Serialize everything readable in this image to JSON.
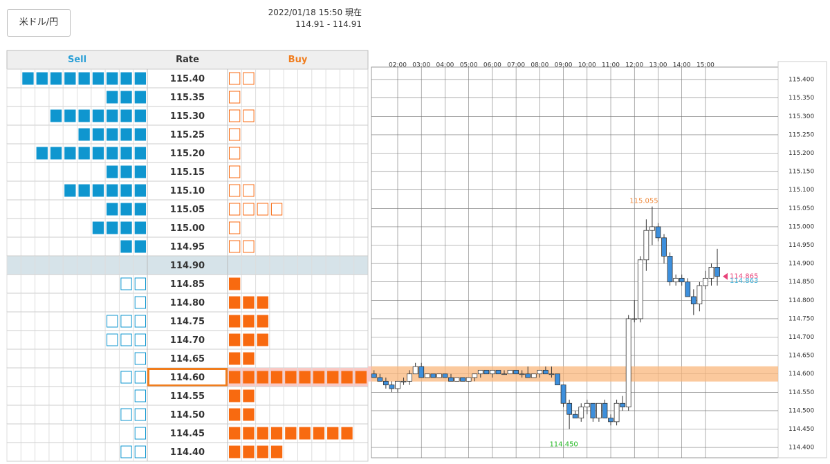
{
  "header": {
    "button": "米ドル/円",
    "timestamp": "2022/01/18 15:50 現在",
    "quote": "114.91 - 114.91"
  },
  "order_book": {
    "headers": {
      "sell": "Sell",
      "rate": "Rate",
      "buy": "Buy"
    },
    "rows": [
      {
        "rate": "115.40",
        "sell": 9,
        "buy": 2
      },
      {
        "rate": "115.35",
        "sell": 3,
        "buy": 1
      },
      {
        "rate": "115.30",
        "sell": 7,
        "buy": 2
      },
      {
        "rate": "115.25",
        "sell": 5,
        "buy": 1
      },
      {
        "rate": "115.20",
        "sell": 8,
        "buy": 1
      },
      {
        "rate": "115.15",
        "sell": 3,
        "buy": 1
      },
      {
        "rate": "115.10",
        "sell": 6,
        "buy": 2
      },
      {
        "rate": "115.05",
        "sell": 3,
        "buy": 4
      },
      {
        "rate": "115.00",
        "sell": 4,
        "buy": 1
      },
      {
        "rate": "114.95",
        "sell": 2,
        "buy": 2
      },
      {
        "rate": "114.90",
        "sell": 0,
        "buy": 0
      },
      {
        "rate": "114.85",
        "sell": 2,
        "buy": 1
      },
      {
        "rate": "114.80",
        "sell": 1,
        "buy": 3
      },
      {
        "rate": "114.75",
        "sell": 3,
        "buy": 3
      },
      {
        "rate": "114.70",
        "sell": 3,
        "buy": 3
      },
      {
        "rate": "114.65",
        "sell": 1,
        "buy": 2
      },
      {
        "rate": "114.60",
        "sell": 2,
        "buy": 10
      },
      {
        "rate": "114.55",
        "sell": 1,
        "buy": 2
      },
      {
        "rate": "114.50",
        "sell": 2,
        "buy": 2
      },
      {
        "rate": "114.45",
        "sell": 1,
        "buy": 9
      },
      {
        "rate": "114.40",
        "sell": 2,
        "buy": 4
      }
    ]
  },
  "chart_data": {
    "type": "candlestick",
    "x": [
      1,
      1.25,
      1.5,
      1.75,
      2,
      2.25,
      2.5,
      2.75,
      3,
      3.25,
      3.5,
      3.75,
      4,
      4.25,
      4.5,
      4.75,
      5,
      5.25,
      5.5,
      5.75,
      6,
      6.25,
      6.5,
      6.75,
      7,
      7.25,
      7.5,
      7.75,
      8,
      8.25,
      8.5,
      8.75,
      9,
      9.25,
      9.5,
      9.75,
      10,
      10.25,
      10.5,
      10.75,
      11,
      11.25,
      11.5,
      11.75,
      12,
      12.25,
      12.5,
      12.75,
      13,
      13.25,
      13.5,
      13.75,
      14,
      14.25,
      14.5,
      14.75,
      15,
      15.25,
      15.5
    ],
    "open": [
      114.6,
      114.59,
      114.58,
      114.57,
      114.56,
      114.58,
      114.58,
      114.6,
      114.62,
      114.59,
      114.6,
      114.59,
      114.6,
      114.59,
      114.58,
      114.59,
      114.58,
      114.59,
      114.6,
      114.61,
      114.6,
      114.61,
      114.6,
      114.6,
      114.61,
      114.6,
      114.6,
      114.59,
      114.6,
      114.61,
      114.6,
      114.6,
      114.57,
      114.52,
      114.49,
      114.48,
      114.51,
      114.52,
      114.48,
      114.52,
      114.48,
      114.47,
      114.52,
      114.51,
      114.75,
      114.75,
      114.91,
      114.99,
      115.0,
      114.97,
      114.92,
      114.85,
      114.86,
      114.85,
      114.81,
      114.79,
      114.84,
      114.86,
      114.89
    ],
    "high": [
      114.61,
      114.6,
      114.59,
      114.58,
      114.58,
      114.59,
      114.61,
      114.63,
      114.63,
      114.6,
      114.6,
      114.6,
      114.6,
      114.6,
      114.59,
      114.59,
      114.59,
      114.6,
      114.61,
      114.61,
      114.61,
      114.61,
      114.61,
      114.61,
      114.61,
      114.61,
      114.62,
      114.6,
      114.61,
      114.62,
      114.62,
      114.6,
      114.57,
      114.53,
      114.5,
      114.52,
      114.53,
      114.52,
      114.52,
      114.53,
      114.49,
      114.53,
      114.54,
      114.76,
      114.8,
      114.92,
      115.02,
      115.055,
      115.01,
      114.98,
      114.93,
      114.87,
      114.87,
      114.86,
      114.83,
      114.85,
      114.88,
      114.9,
      114.94
    ],
    "low": [
      114.59,
      114.58,
      114.56,
      114.55,
      114.55,
      114.57,
      114.57,
      114.6,
      114.59,
      114.59,
      114.59,
      114.59,
      114.59,
      114.58,
      114.58,
      114.58,
      114.58,
      114.58,
      114.59,
      114.6,
      114.59,
      114.6,
      114.6,
      114.6,
      114.6,
      114.59,
      114.59,
      114.59,
      114.59,
      114.6,
      114.59,
      114.57,
      114.51,
      114.45,
      114.48,
      114.47,
      114.49,
      114.47,
      114.47,
      114.48,
      114.46,
      114.46,
      114.5,
      114.5,
      114.74,
      114.74,
      114.88,
      114.95,
      114.96,
      114.9,
      114.84,
      114.84,
      114.84,
      114.81,
      114.76,
      114.77,
      114.83,
      114.84,
      114.84
    ],
    "close": [
      114.59,
      114.58,
      114.57,
      114.56,
      114.58,
      114.58,
      114.6,
      114.62,
      114.59,
      114.6,
      114.59,
      114.6,
      114.59,
      114.58,
      114.59,
      114.58,
      114.59,
      114.6,
      114.61,
      114.6,
      114.61,
      114.6,
      114.6,
      114.61,
      114.6,
      114.6,
      114.59,
      114.6,
      114.61,
      114.6,
      114.6,
      114.57,
      114.52,
      114.49,
      114.48,
      114.51,
      114.52,
      114.48,
      114.52,
      114.48,
      114.47,
      114.52,
      114.51,
      114.75,
      114.75,
      114.91,
      114.99,
      115.0,
      114.97,
      114.92,
      114.85,
      114.86,
      114.85,
      114.81,
      114.79,
      114.84,
      114.86,
      114.89,
      114.865
    ],
    "up_color": "#ffffff",
    "down_color": "#3d8fdc",
    "xlim": [
      0.89,
      18.07
    ],
    "xticks": [
      {
        "value": 2,
        "label": "02:00"
      },
      {
        "value": 3,
        "label": "03:00"
      },
      {
        "value": 4,
        "label": "04:00"
      },
      {
        "value": 5,
        "label": "05:00"
      },
      {
        "value": 6,
        "label": "06:00"
      },
      {
        "value": 7,
        "label": "07:00"
      },
      {
        "value": 8,
        "label": "08:00"
      },
      {
        "value": 9,
        "label": "09:00"
      },
      {
        "value": 10,
        "label": "10:00"
      },
      {
        "value": 11,
        "label": "11:00"
      },
      {
        "value": 12,
        "label": "12:00"
      },
      {
        "value": 13,
        "label": "13:00"
      },
      {
        "value": 14,
        "label": "14:00"
      },
      {
        "value": 15,
        "label": "15:00"
      }
    ],
    "ylim": [
      114.372,
      115.434
    ],
    "yticks": [
      {
        "value": 115.4,
        "label": "115.400"
      },
      {
        "value": 115.35,
        "label": "115.350"
      },
      {
        "value": 115.3,
        "label": "115.300"
      },
      {
        "value": 115.25,
        "label": "115.250"
      },
      {
        "value": 115.2,
        "label": "115.200"
      },
      {
        "value": 115.15,
        "label": "115.150"
      },
      {
        "value": 115.1,
        "label": "115.100"
      },
      {
        "value": 115.05,
        "label": "115.050"
      },
      {
        "value": 115.0,
        "label": "115.000"
      },
      {
        "value": 114.95,
        "label": "114.950"
      },
      {
        "value": 114.9,
        "label": "114.900"
      },
      {
        "value": 114.85,
        "label": "114.850"
      },
      {
        "value": 114.8,
        "label": "114.800"
      },
      {
        "value": 114.75,
        "label": "114.750"
      },
      {
        "value": 114.7,
        "label": "114.700"
      },
      {
        "value": 114.65,
        "label": "114.650"
      },
      {
        "value": 114.6,
        "label": "114.600"
      },
      {
        "value": 114.55,
        "label": "114.550"
      },
      {
        "value": 114.5,
        "label": "114.500"
      },
      {
        "value": 114.45,
        "label": "114.450"
      },
      {
        "value": 114.4,
        "label": "114.400"
      }
    ],
    "grid": true,
    "annotations": [
      {
        "x": 12.75,
        "y": 115.055,
        "label": "115.055",
        "color": "#f08a3c"
      },
      {
        "x": 9.25,
        "y": 114.45,
        "label": "114.450",
        "color": "#22b822"
      }
    ],
    "price_markers": [
      {
        "y": 114.865,
        "label": "114.865",
        "color": "#e8437a"
      },
      {
        "y": 114.863,
        "label": "114.863",
        "color": "#3bb0d8"
      }
    ]
  }
}
